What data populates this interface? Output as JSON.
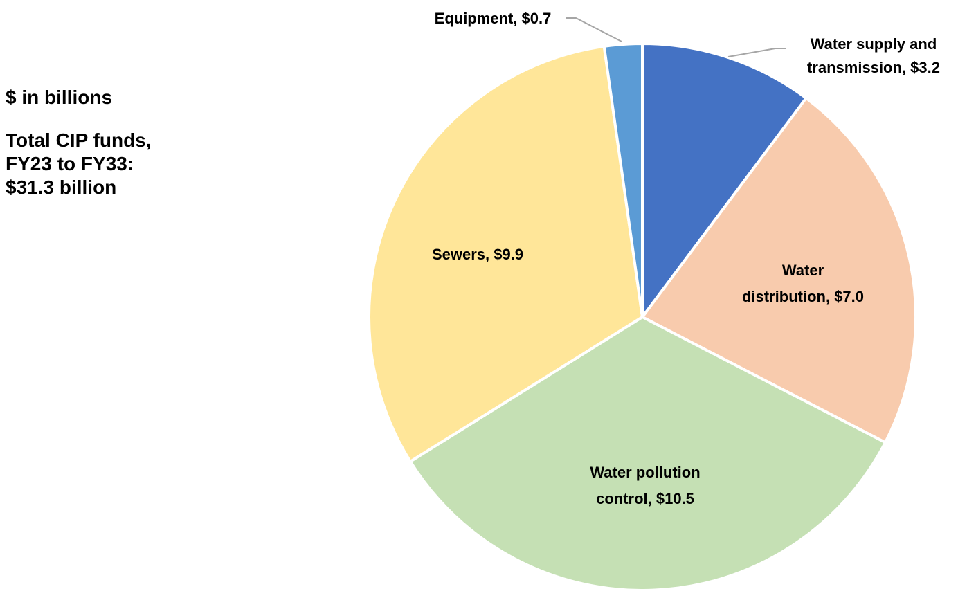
{
  "notes": {
    "units": "$ in billions",
    "total_line1": "Total CIP funds,",
    "total_line2": "FY23 to FY33:",
    "total_line3": "$31.3 billion"
  },
  "chart_data": {
    "type": "pie",
    "title": "",
    "units": "$ in billions",
    "total": 31.3,
    "start_angle_deg": 0,
    "direction": "clockwise",
    "slices": [
      {
        "key": "water-supply",
        "category": "Water supply and transmission",
        "value": 3.2,
        "color": "#4472C4",
        "label_lines": [
          "Water supply and",
          "transmission, $3.2"
        ]
      },
      {
        "key": "water-distribution",
        "category": "Water distribution",
        "value": 7.0,
        "color": "#F8CBAD",
        "label_lines": [
          "Water",
          "distribution, $7.0"
        ]
      },
      {
        "key": "water-pollution-control",
        "category": "Water pollution control",
        "value": 10.5,
        "color": "#C5E0B4",
        "label_lines": [
          "Water pollution",
          "control, $10.5"
        ]
      },
      {
        "key": "sewers",
        "category": "Sewers",
        "value": 9.9,
        "color": "#FFE699",
        "label_lines": [
          "Sewers, $9.9"
        ]
      },
      {
        "key": "equipment",
        "category": "Equipment",
        "value": 0.7,
        "color": "#5B9BD5",
        "label_lines": [
          "Equipment, $0.7"
        ]
      }
    ]
  }
}
